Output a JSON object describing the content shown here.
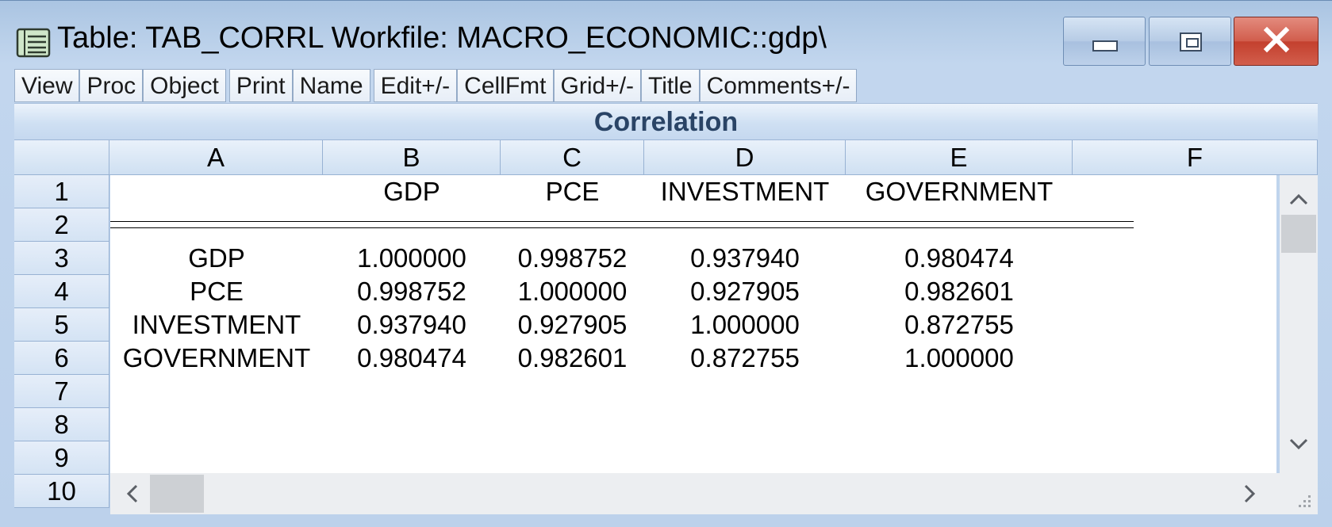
{
  "window": {
    "title": "Table: TAB_CORRL    Workfile: MACRO_ECONOMIC::gdp\\",
    "icon": "table-icon"
  },
  "toolbar": {
    "buttons": [
      "View",
      "Proc",
      "Object",
      "Print",
      "Name",
      "Edit+/-",
      "CellFmt",
      "Grid+/-",
      "Title",
      "Comments+/-"
    ]
  },
  "table": {
    "title": "Correlation",
    "columns": [
      "A",
      "B",
      "C",
      "D",
      "E",
      "F"
    ],
    "rows": [
      "1",
      "2",
      "3",
      "4",
      "5",
      "6",
      "7",
      "8",
      "9",
      "10"
    ],
    "header": [
      "",
      "GDP",
      "PCE",
      "INVESTMENT",
      "GOVERNMENT"
    ],
    "data": [
      [
        "GDP",
        "1.000000",
        "0.998752",
        "0.937940",
        "0.980474"
      ],
      [
        "PCE",
        "0.998752",
        "1.000000",
        "0.927905",
        "0.982601"
      ],
      [
        "INVESTMENT",
        "0.937940",
        "0.927905",
        "1.000000",
        "0.872755"
      ],
      [
        "GOVERNMENT",
        "0.980474",
        "0.982601",
        "0.872755",
        "1.000000"
      ]
    ]
  },
  "colors": {
    "title_text": "#2a4466",
    "close_button": "#c3402e",
    "header_bg": "#cfe0f2"
  }
}
